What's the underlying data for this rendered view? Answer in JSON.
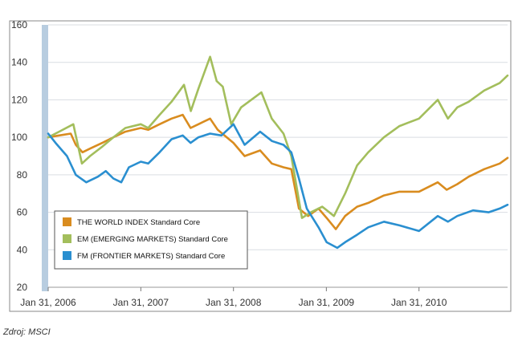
{
  "caption": "Zdroj: MSCI",
  "chart_data": {
    "type": "line",
    "title": "",
    "xlabel": "",
    "ylabel": "",
    "ylim": [
      20,
      160
    ],
    "yticks": [
      20,
      40,
      60,
      80,
      100,
      120,
      140,
      160
    ],
    "xlim": [
      "2006-01-31",
      "2011-01-15"
    ],
    "xticks": [
      "Jan 31, 2006",
      "Jan 31, 2007",
      "Jan 31, 2008",
      "Jan 31, 2009",
      "Jan 31, 2010"
    ],
    "grid": "horizontal",
    "legend_position": "bottom-left",
    "colors": {
      "world": "#d98c1f",
      "em": "#a3be5c",
      "fm": "#2a8fd0",
      "grid": "#d9dde2",
      "axis_bar": "#b8cde0",
      "frame": "#8a8a8a"
    },
    "series": [
      {
        "id": "world",
        "name": "THE WORLD INDEX Standard Core",
        "points": [
          [
            "2006-01-31",
            100
          ],
          [
            "2006-03-15",
            101
          ],
          [
            "2006-04-30",
            102
          ],
          [
            "2006-05-20",
            96
          ],
          [
            "2006-06-15",
            92
          ],
          [
            "2006-07-15",
            94
          ],
          [
            "2006-09-01",
            97
          ],
          [
            "2006-10-15",
            100
          ],
          [
            "2006-12-01",
            103
          ],
          [
            "2007-01-31",
            105
          ],
          [
            "2007-03-01",
            104
          ],
          [
            "2007-04-15",
            107
          ],
          [
            "2007-06-01",
            110
          ],
          [
            "2007-07-15",
            112
          ],
          [
            "2007-08-15",
            105
          ],
          [
            "2007-09-15",
            107
          ],
          [
            "2007-10-31",
            110
          ],
          [
            "2007-11-30",
            104
          ],
          [
            "2008-01-31",
            97
          ],
          [
            "2008-03-15",
            90
          ],
          [
            "2008-05-15",
            93
          ],
          [
            "2008-06-30",
            86
          ],
          [
            "2008-08-15",
            84
          ],
          [
            "2008-09-15",
            83
          ],
          [
            "2008-10-15",
            62
          ],
          [
            "2008-11-20",
            58
          ],
          [
            "2008-12-31",
            62
          ],
          [
            "2009-02-01",
            57
          ],
          [
            "2009-03-09",
            51
          ],
          [
            "2009-04-15",
            58
          ],
          [
            "2009-06-01",
            63
          ],
          [
            "2009-07-15",
            65
          ],
          [
            "2009-09-15",
            69
          ],
          [
            "2009-11-15",
            71
          ],
          [
            "2010-01-31",
            71
          ],
          [
            "2010-04-15",
            76
          ],
          [
            "2010-05-20",
            72
          ],
          [
            "2010-07-01",
            75
          ],
          [
            "2010-08-15",
            79
          ],
          [
            "2010-10-15",
            83
          ],
          [
            "2010-12-15",
            86
          ],
          [
            "2011-01-15",
            89
          ]
        ]
      },
      {
        "id": "em",
        "name": "EM (EMERGING MARKETS) Standard Core",
        "points": [
          [
            "2006-01-31",
            100
          ],
          [
            "2006-03-15",
            103
          ],
          [
            "2006-05-10",
            107
          ],
          [
            "2006-06-13",
            86
          ],
          [
            "2006-07-15",
            90
          ],
          [
            "2006-09-01",
            95
          ],
          [
            "2006-10-15",
            100
          ],
          [
            "2006-12-01",
            105
          ],
          [
            "2007-01-31",
            107
          ],
          [
            "2007-03-01",
            105
          ],
          [
            "2007-04-15",
            112
          ],
          [
            "2007-06-01",
            119
          ],
          [
            "2007-07-20",
            128
          ],
          [
            "2007-08-16",
            114
          ],
          [
            "2007-09-15",
            126
          ],
          [
            "2007-10-31",
            143
          ],
          [
            "2007-11-26",
            130
          ],
          [
            "2007-12-20",
            127
          ],
          [
            "2008-01-22",
            107
          ],
          [
            "2008-03-01",
            116
          ],
          [
            "2008-05-20",
            124
          ],
          [
            "2008-06-30",
            110
          ],
          [
            "2008-08-15",
            102
          ],
          [
            "2008-09-15",
            90
          ],
          [
            "2008-10-27",
            57
          ],
          [
            "2008-12-01",
            60
          ],
          [
            "2009-01-15",
            63
          ],
          [
            "2009-03-02",
            58
          ],
          [
            "2009-04-15",
            70
          ],
          [
            "2009-06-01",
            85
          ],
          [
            "2009-07-15",
            92
          ],
          [
            "2009-09-15",
            100
          ],
          [
            "2009-11-15",
            106
          ],
          [
            "2010-01-31",
            110
          ],
          [
            "2010-04-15",
            120
          ],
          [
            "2010-05-25",
            110
          ],
          [
            "2010-07-01",
            116
          ],
          [
            "2010-08-15",
            119
          ],
          [
            "2010-10-15",
            125
          ],
          [
            "2010-12-15",
            129
          ],
          [
            "2011-01-15",
            133
          ]
        ]
      },
      {
        "id": "fm",
        "name": "FM (FRONTIER MARKETS) Standard Core",
        "points": [
          [
            "2006-01-31",
            102
          ],
          [
            "2006-03-01",
            97
          ],
          [
            "2006-04-15",
            90
          ],
          [
            "2006-05-20",
            80
          ],
          [
            "2006-06-30",
            76
          ],
          [
            "2006-08-15",
            79
          ],
          [
            "2006-09-15",
            82
          ],
          [
            "2006-10-15",
            78
          ],
          [
            "2006-11-15",
            76
          ],
          [
            "2006-12-15",
            84
          ],
          [
            "2007-01-31",
            87
          ],
          [
            "2007-03-01",
            86
          ],
          [
            "2007-04-15",
            92
          ],
          [
            "2007-06-01",
            99
          ],
          [
            "2007-07-15",
            101
          ],
          [
            "2007-08-15",
            97
          ],
          [
            "2007-09-15",
            100
          ],
          [
            "2007-10-31",
            102
          ],
          [
            "2007-12-15",
            101
          ],
          [
            "2008-01-31",
            107
          ],
          [
            "2008-03-15",
            96
          ],
          [
            "2008-05-15",
            103
          ],
          [
            "2008-07-01",
            98
          ],
          [
            "2008-08-15",
            96
          ],
          [
            "2008-09-15",
            92
          ],
          [
            "2008-10-15",
            78
          ],
          [
            "2008-11-15",
            62
          ],
          [
            "2008-12-31",
            52
          ],
          [
            "2009-02-01",
            44
          ],
          [
            "2009-03-15",
            41
          ],
          [
            "2009-04-15",
            44
          ],
          [
            "2009-06-01",
            48
          ],
          [
            "2009-07-15",
            52
          ],
          [
            "2009-09-15",
            55
          ],
          [
            "2009-11-15",
            53
          ],
          [
            "2010-01-31",
            50
          ],
          [
            "2010-04-15",
            58
          ],
          [
            "2010-05-25",
            55
          ],
          [
            "2010-07-01",
            58
          ],
          [
            "2010-09-01",
            61
          ],
          [
            "2010-11-01",
            60
          ],
          [
            "2010-12-15",
            62
          ],
          [
            "2011-01-15",
            64
          ]
        ]
      }
    ]
  }
}
